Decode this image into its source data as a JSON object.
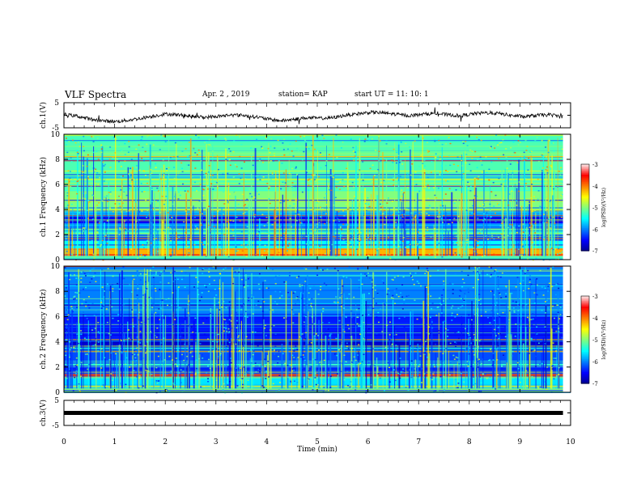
{
  "header": {
    "title": "VLF Spectra",
    "date": "Apr. 2 , 2019",
    "station": "station= KAP",
    "start": "start UT = 11: 10: 1"
  },
  "chart_data": [
    {
      "type": "line",
      "name": "ch1-waveform",
      "ylabel": "ch.1(V)",
      "ylim": [
        -5,
        5
      ],
      "yticks": [
        "5",
        "-5"
      ],
      "xlim": [
        0,
        10
      ],
      "samples_approx": [
        0.3,
        -0.3,
        -1.5,
        -2.2,
        -2.5,
        -2.0,
        -1.2,
        -0.3,
        0.5,
        0.2,
        -0.5,
        -0.8,
        -0.4,
        0.1,
        0.0,
        -0.6,
        -1.6,
        -2.2,
        -1.6,
        -1.0,
        -1.2,
        -1.0,
        0.0,
        0.6,
        1.2,
        0.9,
        0.4,
        -0.2,
        0.4,
        0.8,
        0.2,
        -0.2,
        0.6,
        1.0,
        0.7,
        -0.1,
        -0.6,
        0.0,
        0.2,
        -0.6
      ]
    },
    {
      "type": "heatmap",
      "name": "ch1-spectrogram",
      "ylabel": "ch.1 Frequency (kHz)",
      "ylim": [
        0,
        10
      ],
      "yticks": [
        "10",
        "8",
        "6",
        "4",
        "2",
        "0"
      ],
      "xlim": [
        0,
        10
      ],
      "colorbar": {
        "label": "log(PSD)(V²/Hz)",
        "range": [
          -7,
          -3
        ],
        "ticks": [
          "-3",
          "-4",
          "-5",
          "-6",
          "-7"
        ]
      },
      "bands_log_psd": [
        {
          "f": [
            0.0,
            0.3
          ],
          "v": -5.2
        },
        {
          "f": [
            0.3,
            0.45
          ],
          "v": -3.8
        },
        {
          "f": [
            0.45,
            0.9
          ],
          "v": -4.2
        },
        {
          "f": [
            0.9,
            1.5
          ],
          "v": -5.5
        },
        {
          "f": [
            1.5,
            2.0
          ],
          "v": -6.2
        },
        {
          "f": [
            2.0,
            2.4
          ],
          "v": -5.2
        },
        {
          "f": [
            2.4,
            2.9
          ],
          "v": -6.0
        },
        {
          "f": [
            2.9,
            3.4
          ],
          "v": -6.5
        },
        {
          "f": [
            3.4,
            3.8
          ],
          "v": -5.8
        },
        {
          "f": [
            3.8,
            5.5
          ],
          "v": -5.0
        },
        {
          "f": [
            5.5,
            10.0
          ],
          "v": -5.2
        }
      ]
    },
    {
      "type": "heatmap",
      "name": "ch2-spectrogram",
      "ylabel": "ch.2 Frequency (kHz)",
      "ylim": [
        0,
        10
      ],
      "yticks": [
        "10",
        "8",
        "6",
        "4",
        "2",
        "0"
      ],
      "xlim": [
        0,
        10
      ],
      "colorbar": {
        "label": "log(PSD)(V²/Hz)",
        "range": [
          -7,
          -3
        ],
        "ticks": [
          "-3",
          "-4",
          "-5",
          "-6",
          "-7"
        ]
      },
      "bands_log_psd": [
        {
          "f": [
            0.0,
            0.5
          ],
          "v": -5.0
        },
        {
          "f": [
            0.5,
            1.2
          ],
          "v": -5.6
        },
        {
          "f": [
            1.2,
            2.0
          ],
          "v": -6.2
        },
        {
          "f": [
            2.0,
            2.5
          ],
          "v": -5.3
        },
        {
          "f": [
            2.5,
            3.2
          ],
          "v": -6.2
        },
        {
          "f": [
            3.2,
            4.2
          ],
          "v": -6.7
        },
        {
          "f": [
            4.2,
            6.0
          ],
          "v": -6.4
        },
        {
          "f": [
            6.0,
            10.0
          ],
          "v": -6.0
        }
      ]
    },
    {
      "type": "line",
      "name": "ch3-waveform",
      "ylabel": "ch.3(V)",
      "ylim": [
        -5,
        5
      ],
      "yticks": [
        "5",
        "-5"
      ],
      "xlim": [
        0,
        10
      ],
      "value": 0.0
    }
  ],
  "xaxis": {
    "label": "Time (min)",
    "ticks": [
      "0",
      "1",
      "2",
      "3",
      "4",
      "5",
      "6",
      "7",
      "8",
      "9",
      "10"
    ]
  },
  "colors": {
    "jet": [
      "#00008f",
      "#0000ff",
      "#00ffff",
      "#80ff80",
      "#ffff00",
      "#ff0000",
      "#ffdddd"
    ]
  }
}
